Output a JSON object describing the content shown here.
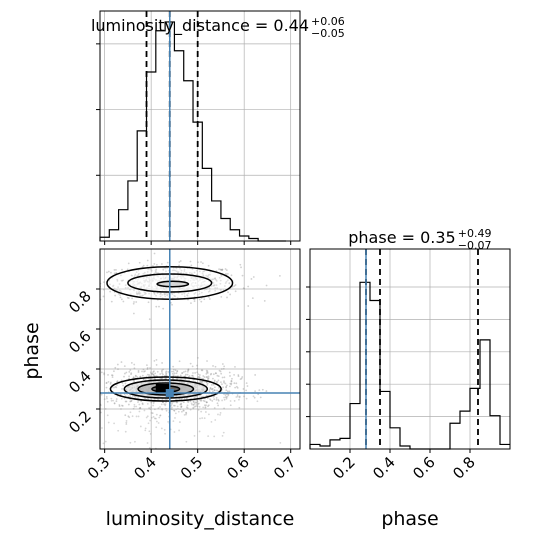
{
  "chart_data": {
    "type": "corner",
    "parameters": [
      "luminosity_distance",
      "phase"
    ],
    "truths": {
      "luminosity_distance": 0.44,
      "phase": 0.28
    },
    "colors": {
      "truth": "#4682b4",
      "hist": "#000000",
      "grid": "#b0b0b0",
      "points": "#9a9a9a"
    },
    "grid": true,
    "panels": [
      {
        "id": "hist_distance",
        "type": "histogram",
        "title_main": "luminosity_distance = 0.44",
        "title_sup": "+0.06",
        "title_sub": "−0.05",
        "bin_edges": [
          0.29,
          0.31,
          0.33,
          0.35,
          0.37,
          0.39,
          0.41,
          0.43,
          0.45,
          0.47,
          0.49,
          0.51,
          0.53,
          0.55,
          0.57,
          0.59,
          0.61,
          0.63,
          0.65,
          0.67,
          0.69
        ],
        "counts": [
          3,
          9,
          25,
          48,
          88,
          135,
          168,
          175,
          152,
          128,
          95,
          58,
          32,
          18,
          9,
          4,
          2,
          0,
          0,
          0
        ],
        "quantiles": [
          0.39,
          0.44,
          0.5
        ],
        "truth": 0.44,
        "xlim": [
          0.29,
          0.72
        ]
      },
      {
        "id": "hist_phase",
        "type": "histogram",
        "title_main": "phase = 0.35",
        "title_sup": "+0.49",
        "title_sub": "−0.07",
        "bin_edges": [
          0.0,
          0.05,
          0.1,
          0.15,
          0.2,
          0.25,
          0.3,
          0.35,
          0.4,
          0.45,
          0.5,
          0.55,
          0.6,
          0.65,
          0.7,
          0.75,
          0.8,
          0.85,
          0.9,
          0.95,
          1.0
        ],
        "counts": [
          3,
          2,
          6,
          7,
          30,
          110,
          98,
          38,
          14,
          2,
          0,
          0,
          0,
          0,
          17,
          25,
          40,
          72,
          22,
          3
        ],
        "quantiles": [
          0.28,
          0.35,
          0.84
        ],
        "truth": 0.28,
        "xlim": [
          0.0,
          1.0
        ],
        "xticks": [
          "0.2",
          "0.4",
          "0.6",
          "0.8"
        ],
        "xlabel": "phase"
      },
      {
        "id": "scatter_joint",
        "type": "scatter-contour",
        "xlim": [
          0.29,
          0.72
        ],
        "ylim": [
          0.0,
          1.0
        ],
        "xticks": [
          "0.3",
          "0.4",
          "0.5",
          "0.6",
          "0.7"
        ],
        "yticks": [
          "0.2",
          "0.4",
          "0.6",
          "0.8"
        ],
        "xlabel": "luminosity_distance",
        "ylabel": "phase",
        "clusters": [
          {
            "center": [
              0.44,
              0.83
            ],
            "spread": [
              0.075,
              0.045
            ]
          },
          {
            "center": [
              0.44,
              0.31
            ],
            "spread": [
              0.07,
              0.05
            ]
          }
        ],
        "truth": [
          0.44,
          0.28
        ]
      }
    ]
  }
}
